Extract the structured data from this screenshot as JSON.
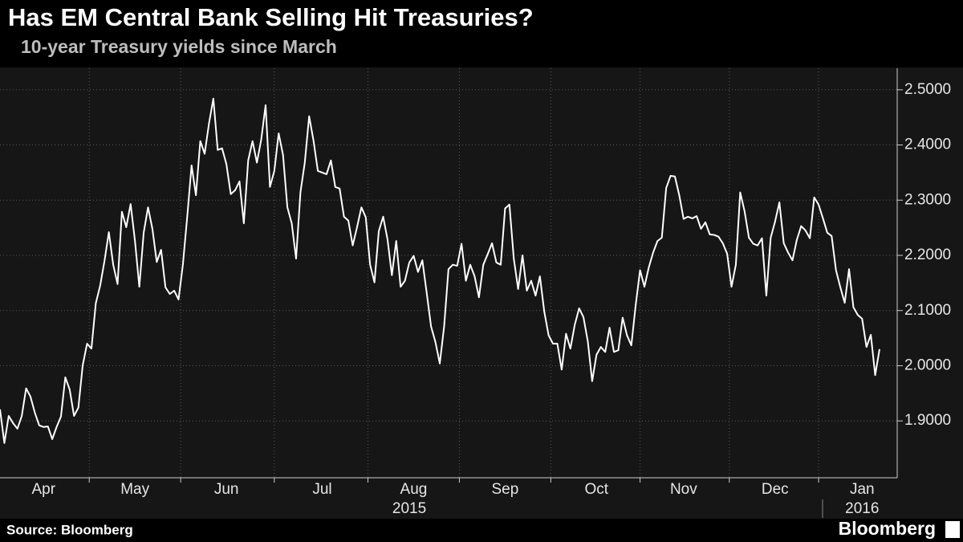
{
  "chart_data": {
    "type": "line",
    "title": "Has EM Central Bank Selling Hit Treasuries?",
    "subtitle": "10-year Treasury yields since March",
    "source": "Source: Bloomberg",
    "brand": "Bloomberg",
    "year_labels": [
      "2015",
      "2016"
    ],
    "categories": [
      null,
      null,
      null,
      null,
      null,
      null,
      null,
      null,
      null,
      null,
      "Apr",
      null,
      null,
      null,
      null,
      null,
      null,
      null,
      null,
      null,
      null,
      null,
      null,
      null,
      null,
      null,
      null,
      null,
      null,
      null,
      null,
      "May",
      null,
      null,
      null,
      null,
      null,
      null,
      null,
      null,
      null,
      null,
      null,
      null,
      null,
      null,
      null,
      null,
      null,
      null,
      null,
      null,
      "Jun",
      null,
      null,
      null,
      null,
      null,
      null,
      null,
      null,
      null,
      null,
      null,
      null,
      null,
      null,
      null,
      null,
      null,
      null,
      null,
      null,
      null,
      "Jul",
      null,
      null,
      null,
      null,
      null,
      null,
      null,
      null,
      null,
      null,
      null,
      null,
      null,
      null,
      null,
      null,
      null,
      null,
      null,
      null,
      "Aug",
      null,
      null,
      null,
      null,
      null,
      null,
      null,
      null,
      null,
      null,
      null,
      null,
      null,
      null,
      null,
      null,
      null,
      null,
      null,
      null,
      "Sep",
      null,
      null,
      null,
      null,
      null,
      null,
      null,
      null,
      null,
      null,
      null,
      null,
      null,
      null,
      null,
      null,
      null,
      null,
      null,
      null,
      "Oct",
      null,
      null,
      null,
      null,
      null,
      null,
      null,
      null,
      null,
      null,
      null,
      null,
      null,
      null,
      null,
      null,
      null,
      null,
      null,
      "Nov",
      null,
      null,
      null,
      null,
      null,
      null,
      null,
      null,
      null,
      null,
      null,
      null,
      null,
      null,
      null,
      null,
      null,
      null,
      null,
      null,
      "Dec",
      null,
      null,
      null,
      null,
      null,
      null,
      null,
      null,
      null,
      null,
      null,
      null,
      null,
      null,
      null,
      null,
      null,
      null,
      null,
      "Jan",
      null,
      null,
      null,
      null
    ],
    "series": [
      {
        "name": "10-year Treasury yield",
        "color": "#ffffff",
        "values": [
          1.921,
          1.86,
          1.909,
          1.896,
          1.886,
          1.909,
          1.959,
          1.944,
          1.915,
          1.892,
          1.889,
          1.89,
          1.867,
          1.889,
          1.908,
          1.979,
          1.957,
          1.909,
          1.924,
          2.001,
          2.04,
          2.031,
          2.113,
          2.145,
          2.19,
          2.242,
          2.183,
          2.148,
          2.279,
          2.251,
          2.293,
          2.226,
          2.143,
          2.241,
          2.287,
          2.248,
          2.188,
          2.21,
          2.142,
          2.13,
          2.136,
          2.12,
          2.183,
          2.27,
          2.363,
          2.309,
          2.407,
          2.384,
          2.439,
          2.484,
          2.391,
          2.394,
          2.365,
          2.311,
          2.318,
          2.334,
          2.258,
          2.372,
          2.407,
          2.368,
          2.41,
          2.472,
          2.324,
          2.353,
          2.421,
          2.382,
          2.287,
          2.258,
          2.194,
          2.314,
          2.368,
          2.452,
          2.408,
          2.353,
          2.35,
          2.347,
          2.372,
          2.324,
          2.321,
          2.27,
          2.263,
          2.218,
          2.251,
          2.287,
          2.269,
          2.183,
          2.151,
          2.244,
          2.27,
          2.229,
          2.164,
          2.226,
          2.143,
          2.154,
          2.187,
          2.199,
          2.17,
          2.191,
          2.132,
          2.071,
          2.043,
          2.004,
          2.071,
          2.175,
          2.183,
          2.181,
          2.221,
          2.154,
          2.183,
          2.162,
          2.124,
          2.183,
          2.202,
          2.222,
          2.187,
          2.183,
          2.285,
          2.292,
          2.194,
          2.139,
          2.2,
          2.136,
          2.154,
          2.127,
          2.162,
          2.098,
          2.055,
          2.04,
          2.04,
          1.993,
          2.058,
          2.031,
          2.074,
          2.104,
          2.088,
          2.044,
          1.972,
          2.02,
          2.034,
          2.025,
          2.069,
          2.025,
          2.028,
          2.087,
          2.055,
          2.037,
          2.11,
          2.173,
          2.143,
          2.178,
          2.205,
          2.226,
          2.232,
          2.322,
          2.344,
          2.343,
          2.309,
          2.266,
          2.27,
          2.267,
          2.271,
          2.248,
          2.26,
          2.238,
          2.237,
          2.234,
          2.222,
          2.203,
          2.143,
          2.183,
          2.314,
          2.28,
          2.232,
          2.221,
          2.218,
          2.231,
          2.127,
          2.232,
          2.261,
          2.296,
          2.222,
          2.205,
          2.191,
          2.228,
          2.253,
          2.245,
          2.231,
          2.305,
          2.292,
          2.267,
          2.241,
          2.235,
          2.173,
          2.142,
          2.114,
          2.175,
          2.106,
          2.092,
          2.085,
          2.034,
          2.056,
          1.983,
          2.03
        ]
      }
    ],
    "ylim": [
      1.797,
      2.539
    ],
    "yticks": [
      {
        "value": 1.9,
        "label": "1.9000"
      },
      {
        "value": 2.0,
        "label": "2.0000"
      },
      {
        "value": 2.1,
        "label": "2.1000"
      },
      {
        "value": 2.2,
        "label": "2.2000"
      },
      {
        "value": 2.3,
        "label": "2.3000"
      },
      {
        "value": 2.4,
        "label": "2.4000"
      },
      {
        "value": 2.5,
        "label": "2.5000"
      }
    ],
    "grid": true
  }
}
